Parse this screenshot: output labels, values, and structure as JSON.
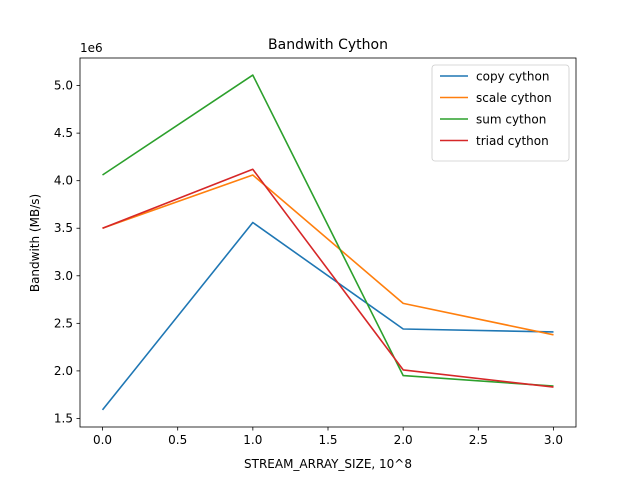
{
  "chart_data": {
    "type": "line",
    "title": "Bandwith Cython",
    "xlabel": "STREAM_ARRAY_SIZE, 10^8",
    "ylabel": "Bandwith (MB/s)",
    "y_offset_label": "1e6",
    "x": [
      0,
      1,
      2,
      3
    ],
    "xlim": [
      -0.15,
      3.15
    ],
    "ylim": [
      1.41,
      5.29
    ],
    "x_ticks": [
      0.0,
      0.5,
      1.0,
      1.5,
      2.0,
      2.5,
      3.0
    ],
    "x_tick_labels": [
      "0.0",
      "0.5",
      "1.0",
      "1.5",
      "2.0",
      "2.5",
      "3.0"
    ],
    "y_ticks": [
      1.5,
      2.0,
      2.5,
      3.0,
      3.5,
      4.0,
      4.5,
      5.0
    ],
    "y_tick_labels": [
      "1.5",
      "2.0",
      "2.5",
      "3.0",
      "3.5",
      "4.0",
      "4.5",
      "5.0"
    ],
    "grid": false,
    "legend_position": "top-right",
    "series": [
      {
        "name": "copy cython",
        "color": "#1f77b4",
        "values": [
          1.59,
          3.56,
          2.44,
          2.41
        ]
      },
      {
        "name": "scale cython",
        "color": "#ff7f0e",
        "values": [
          3.5,
          4.06,
          2.71,
          2.38
        ]
      },
      {
        "name": "sum cython",
        "color": "#2ca02c",
        "values": [
          4.06,
          5.11,
          1.95,
          1.84
        ]
      },
      {
        "name": "triad cython",
        "color": "#d62728",
        "values": [
          3.5,
          4.12,
          2.01,
          1.83
        ]
      }
    ]
  }
}
